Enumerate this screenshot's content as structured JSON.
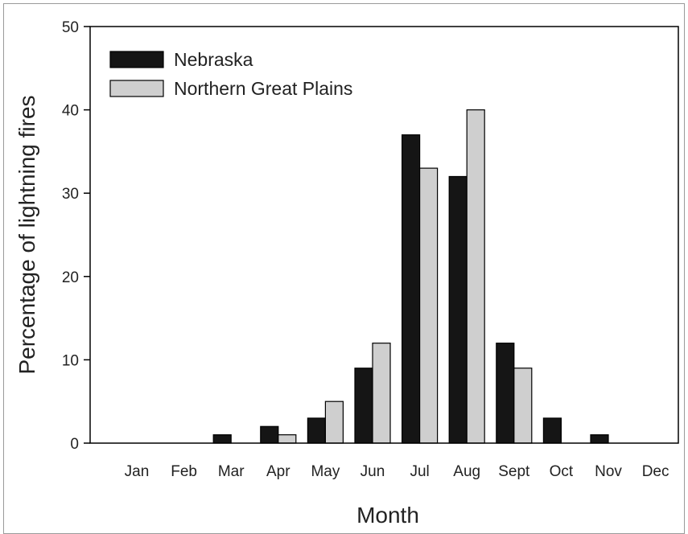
{
  "chart_data": {
    "type": "bar",
    "title": "",
    "xlabel": "Month",
    "ylabel": "Percentage of lightning fires",
    "categories": [
      "Jan",
      "Feb",
      "Mar",
      "Apr",
      "May",
      "Jun",
      "Jul",
      "Aug",
      "Sept",
      "Oct",
      "Nov",
      "Dec"
    ],
    "series": [
      {
        "name": "Nebraska",
        "color": "#151515",
        "values": [
          0,
          0,
          1,
          2,
          3,
          9,
          37,
          32,
          12,
          3,
          1,
          0
        ]
      },
      {
        "name": "Northern Great Plains",
        "color": "#cfcfcf",
        "values": [
          0,
          0,
          0,
          1,
          5,
          12,
          33,
          40,
          9,
          0,
          0,
          0
        ]
      }
    ],
    "ylim": [
      0,
      50
    ],
    "yticks": [
      0,
      10,
      20,
      30,
      40,
      50
    ],
    "grid": false,
    "legend_position": "top-left"
  }
}
